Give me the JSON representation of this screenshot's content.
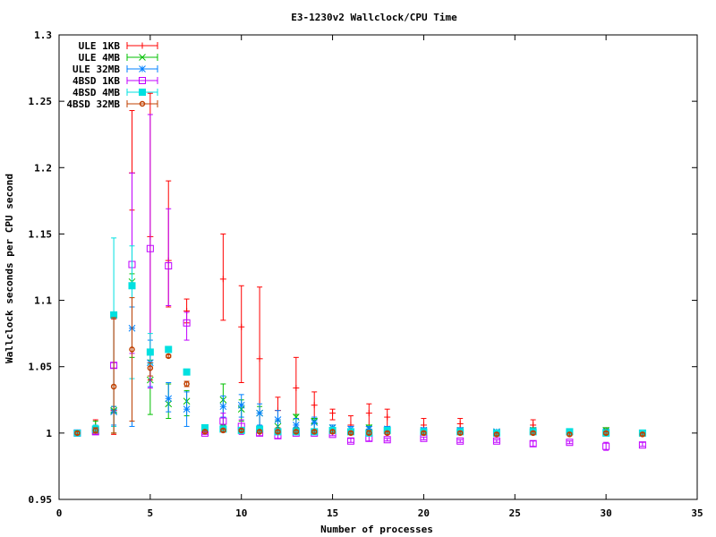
{
  "chart_data": {
    "type": "scatter",
    "title": "E3-1230v2 Wallclock/CPU Time",
    "xlabel": "Number of processes",
    "ylabel": "Wallclock seconds per CPU second",
    "xlim": [
      0,
      35
    ],
    "ylim": [
      0.95,
      1.3
    ],
    "xticks": [
      "0",
      "5",
      "10",
      "15",
      "20",
      "25",
      "30",
      "35"
    ],
    "yticks": [
      "0.95",
      "1",
      "1.05",
      "1.1",
      "1.15",
      "1.2",
      "1.25",
      "1.3"
    ],
    "grid": false,
    "legend_position": "top-left inside",
    "error_bars": true,
    "series": [
      {
        "name": "ULE 1KB",
        "color": "#ff0000",
        "marker": "plus",
        "points": [
          [
            1,
            1.0,
            0.999,
            1.001
          ],
          [
            2,
            1.004,
            0.999,
            1.01
          ],
          [
            3,
            1.017,
            0.999,
            1.086
          ],
          [
            4,
            1.196,
            1.168,
            1.243
          ],
          [
            5,
            1.148,
            1.04,
            1.256
          ],
          [
            6,
            1.13,
            1.095,
            1.19
          ],
          [
            7,
            1.092,
            1.083,
            1.101
          ],
          [
            8,
            1.002,
            1.0,
            1.004
          ],
          [
            9,
            1.116,
            1.085,
            1.15
          ],
          [
            10,
            1.08,
            1.038,
            1.111
          ],
          [
            11,
            1.056,
            1.004,
            1.11
          ],
          [
            12,
            1.017,
            1.004,
            1.027
          ],
          [
            13,
            1.034,
            1.011,
            1.057
          ],
          [
            14,
            1.021,
            1.011,
            1.031
          ],
          [
            15,
            1.015,
            1.01,
            1.018
          ],
          [
            16,
            1.006,
            0.999,
            1.013
          ],
          [
            17,
            1.015,
            1.003,
            1.022
          ],
          [
            18,
            1.012,
            1.003,
            1.018
          ],
          [
            20,
            1.006,
            1.0,
            1.011
          ],
          [
            22,
            1.007,
            1.001,
            1.011
          ],
          [
            24,
            1.0,
            0.999,
            1.002
          ],
          [
            26,
            1.006,
            1.0,
            1.01
          ],
          [
            28,
            1.001,
            1.0,
            1.003
          ],
          [
            30,
            1.002,
            1.0,
            1.004
          ],
          [
            32,
            1.0,
            0.999,
            1.001
          ]
        ]
      },
      {
        "name": "ULE 4MB",
        "color": "#00c000",
        "marker": "cross",
        "points": [
          [
            1,
            1.0,
            0.999,
            1.001
          ],
          [
            2,
            1.003,
            1.0,
            1.009
          ],
          [
            3,
            1.017,
            1.0,
            1.02
          ],
          [
            4,
            1.114,
            1.057,
            1.12
          ],
          [
            5,
            1.04,
            1.014,
            1.055
          ],
          [
            6,
            1.022,
            1.011,
            1.037
          ],
          [
            7,
            1.024,
            1.013,
            1.032
          ],
          [
            8,
            1.004,
            1.002,
            1.005
          ],
          [
            9,
            1.025,
            1.006,
            1.037
          ],
          [
            10,
            1.018,
            1.009,
            1.025
          ],
          [
            11,
            1.015,
            1.005,
            1.02
          ],
          [
            12,
            1.005,
            1.0,
            1.009
          ],
          [
            13,
            1.012,
            1.004,
            1.014
          ],
          [
            14,
            1.009,
            1.0,
            1.011
          ],
          [
            15,
            1.004,
            1.0,
            1.006
          ],
          [
            16,
            1.001,
            0.999,
            1.003
          ],
          [
            17,
            1.004,
            1.0,
            1.006
          ],
          [
            18,
            1.002,
            1.0,
            1.004
          ],
          [
            20,
            1.002,
            1.0,
            1.003
          ],
          [
            22,
            1.002,
            1.0,
            1.004
          ],
          [
            24,
            1.001,
            1.0,
            1.002
          ],
          [
            26,
            1.002,
            1.0,
            1.004
          ],
          [
            28,
            1.001,
            1.0,
            1.002
          ],
          [
            30,
            1.002,
            1.0,
            1.004
          ],
          [
            32,
            1.0,
            0.999,
            1.002
          ]
        ]
      },
      {
        "name": "ULE 32MB",
        "color": "#0080ff",
        "marker": "star",
        "points": [
          [
            1,
            1.0,
            0.999,
            1.001
          ],
          [
            2,
            1.002,
            1.0,
            1.004
          ],
          [
            3,
            1.016,
            1.006,
            1.02
          ],
          [
            4,
            1.079,
            1.005,
            1.095
          ],
          [
            5,
            1.053,
            1.035,
            1.07
          ],
          [
            6,
            1.026,
            1.016,
            1.038
          ],
          [
            7,
            1.018,
            1.005,
            1.031
          ],
          [
            8,
            1.003,
            1.001,
            1.005
          ],
          [
            9,
            1.02,
            1.012,
            1.028
          ],
          [
            10,
            1.021,
            1.012,
            1.029
          ],
          [
            11,
            1.015,
            1.006,
            1.022
          ],
          [
            12,
            1.01,
            1.003,
            1.017
          ],
          [
            13,
            1.006,
            1.002,
            1.011
          ],
          [
            14,
            1.008,
            1.003,
            1.012
          ],
          [
            15,
            1.004,
            1.001,
            1.006
          ],
          [
            16,
            1.003,
            1.001,
            1.005
          ],
          [
            17,
            1.003,
            1.0,
            1.005
          ],
          [
            18,
            1.003,
            1.0,
            1.005
          ],
          [
            20,
            1.002,
            1.0,
            1.004
          ],
          [
            22,
            1.002,
            1.001,
            1.004
          ],
          [
            24,
            1.001,
            1.0,
            1.002
          ],
          [
            26,
            1.002,
            1.0,
            1.003
          ],
          [
            28,
            1.001,
            1.0,
            1.002
          ],
          [
            30,
            1.001,
            1.0,
            1.002
          ],
          [
            32,
            1.0,
            0.999,
            1.001
          ]
        ]
      },
      {
        "name": "4BSD 1KB",
        "color": "#c000ff",
        "marker": "open-square",
        "points": [
          [
            1,
            1.0,
            0.999,
            1.0
          ],
          [
            2,
            1.001,
            0.999,
            1.002
          ],
          [
            3,
            1.051,
            1.049,
            1.053
          ],
          [
            4,
            1.127,
            1.06,
            1.196
          ],
          [
            5,
            1.139,
            1.034,
            1.24
          ],
          [
            6,
            1.126,
            1.096,
            1.169
          ],
          [
            7,
            1.083,
            1.07,
            1.091
          ],
          [
            8,
            1.0,
            0.999,
            1.001
          ],
          [
            9,
            1.009,
            1.003,
            1.015
          ],
          [
            10,
            1.005,
            0.999,
            1.01
          ],
          [
            11,
            1.0,
            0.998,
            1.003
          ],
          [
            12,
            0.998,
            0.996,
            1.0
          ],
          [
            13,
            1.0,
            0.999,
            1.001
          ],
          [
            14,
            1.0,
            0.999,
            1.001
          ],
          [
            15,
            0.999,
            0.998,
            1.0
          ],
          [
            16,
            0.994,
            0.993,
            0.996
          ],
          [
            17,
            0.996,
            0.994,
            0.998
          ],
          [
            18,
            0.995,
            0.994,
            0.996
          ],
          [
            20,
            0.996,
            0.995,
            0.997
          ],
          [
            22,
            0.994,
            0.993,
            0.995
          ],
          [
            24,
            0.994,
            0.993,
            0.995
          ],
          [
            26,
            0.992,
            0.99,
            0.994
          ],
          [
            28,
            0.993,
            0.992,
            0.994
          ],
          [
            30,
            0.99,
            0.987,
            0.993
          ],
          [
            32,
            0.991,
            0.99,
            0.993
          ]
        ]
      },
      {
        "name": "4BSD 4MB",
        "color": "#00e0e0",
        "marker": "filled-square",
        "points": [
          [
            1,
            1.0,
            0.999,
            1.001
          ],
          [
            2,
            1.003,
            1.0,
            1.006
          ],
          [
            3,
            1.089,
            1.005,
            1.147
          ],
          [
            4,
            1.111,
            1.041,
            1.141
          ],
          [
            5,
            1.061,
            1.052,
            1.075
          ],
          [
            6,
            1.063,
            1.062,
            1.064
          ],
          [
            7,
            1.046,
            1.044,
            1.048
          ],
          [
            8,
            1.004,
            1.002,
            1.005
          ],
          [
            9,
            1.003,
            1.002,
            1.004
          ],
          [
            10,
            1.002,
            1.0,
            1.004
          ],
          [
            11,
            1.003,
            1.001,
            1.004
          ],
          [
            12,
            1.001,
            1.0,
            1.003
          ],
          [
            13,
            1.001,
            1.0,
            1.002
          ],
          [
            14,
            1.001,
            1.0,
            1.002
          ],
          [
            15,
            1.002,
            1.0,
            1.004
          ],
          [
            16,
            1.001,
            0.999,
            1.002
          ],
          [
            17,
            1.0,
            0.998,
            1.002
          ],
          [
            18,
            1.002,
            1.0,
            1.003
          ],
          [
            20,
            1.001,
            1.0,
            1.003
          ],
          [
            22,
            1.001,
            1.0,
            1.002
          ],
          [
            24,
            1.0,
            0.999,
            1.001
          ],
          [
            26,
            1.001,
            1.0,
            1.002
          ],
          [
            28,
            1.001,
            1.0,
            1.002
          ],
          [
            30,
            1.0,
            0.999,
            1.002
          ],
          [
            32,
            1.0,
            0.998,
            1.002
          ]
        ]
      },
      {
        "name": "4BSD 32MB",
        "color": "#c04000",
        "marker": "open-circle",
        "points": [
          [
            1,
            1.0,
            0.999,
            1.001
          ],
          [
            2,
            1.002,
            1.0,
            1.004
          ],
          [
            3,
            1.035,
            1.0,
            1.087
          ],
          [
            4,
            1.063,
            1.009,
            1.102
          ],
          [
            5,
            1.049,
            1.043,
            1.053
          ],
          [
            6,
            1.058,
            1.057,
            1.059
          ],
          [
            7,
            1.037,
            1.035,
            1.039
          ],
          [
            8,
            1.001,
            1.0,
            1.002
          ],
          [
            9,
            1.002,
            1.001,
            1.003
          ],
          [
            10,
            1.002,
            1.001,
            1.003
          ],
          [
            11,
            1.001,
            1.0,
            1.002
          ],
          [
            12,
            1.001,
            1.0,
            1.002
          ],
          [
            13,
            1.001,
            1.0,
            1.002
          ],
          [
            14,
            1.001,
            1.0,
            1.002
          ],
          [
            15,
            1.001,
            1.0,
            1.002
          ],
          [
            16,
            1.0,
            0.999,
            1.001
          ],
          [
            17,
            1.0,
            0.999,
            1.002
          ],
          [
            18,
            1.0,
            0.999,
            1.001
          ],
          [
            20,
            1.0,
            0.999,
            1.001
          ],
          [
            22,
            1.0,
            0.999,
            1.001
          ],
          [
            24,
            0.999,
            0.998,
            1.0
          ],
          [
            26,
            1.0,
            0.999,
            1.001
          ],
          [
            28,
            0.999,
            0.998,
            1.0
          ],
          [
            30,
            1.0,
            0.999,
            1.001
          ],
          [
            32,
            0.999,
            0.998,
            1.0
          ]
        ]
      }
    ]
  }
}
